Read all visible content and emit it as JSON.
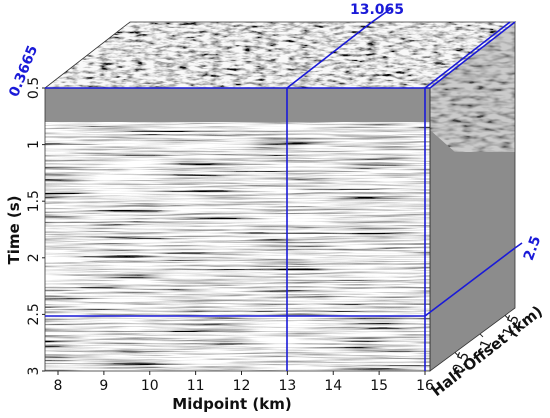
{
  "figure": {
    "slice_labels": {
      "crossline": "13.065",
      "time": "0.3665",
      "offset": "2.5"
    },
    "axes": {
      "time": {
        "label": "Time (s)",
        "ticks": [
          "0.5",
          "1",
          "1.5",
          "2",
          "2.5",
          "3"
        ]
      },
      "midpoint": {
        "label": "Midpoint (km)",
        "ticks": [
          "8",
          "9",
          "10",
          "11",
          "12",
          "13",
          "14",
          "15",
          "16"
        ]
      },
      "offset": {
        "label": "Half-Offset (km)",
        "ticks": [
          "0.5",
          "1",
          "1.5"
        ]
      }
    },
    "colors": {
      "slice_line": "#1a1ad8",
      "background_gray": "#8c8c8c"
    }
  }
}
